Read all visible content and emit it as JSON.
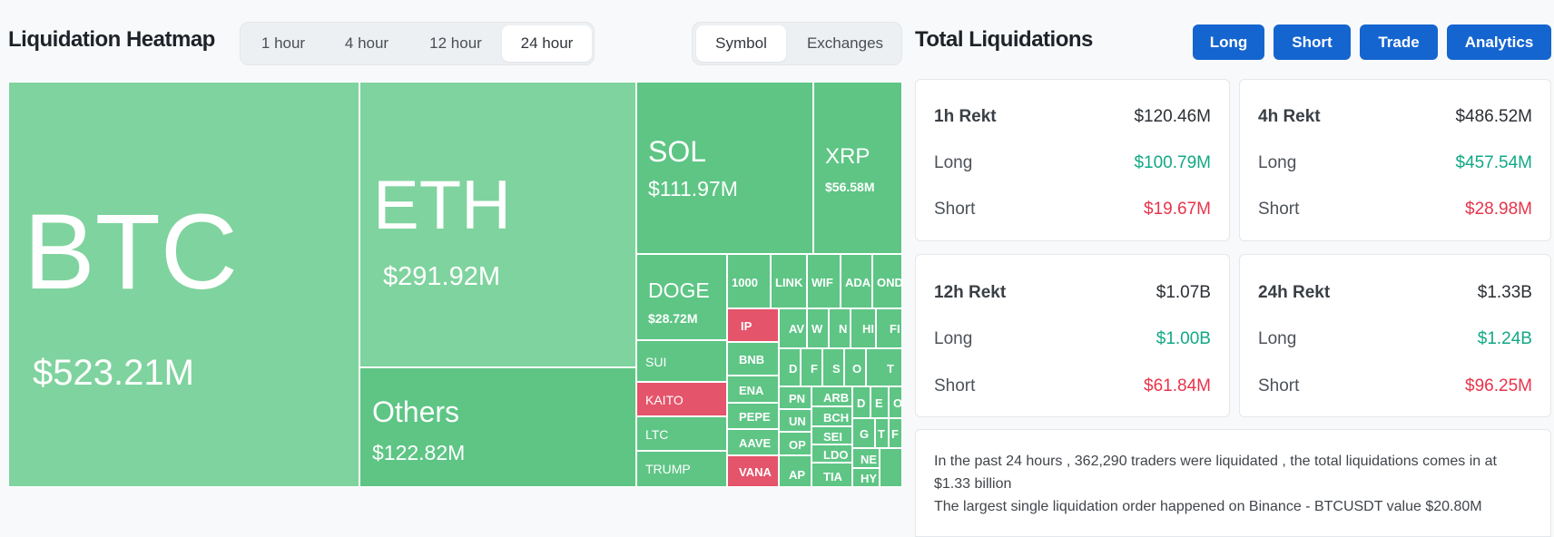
{
  "heatmap": {
    "title": "Liquidation Heatmap",
    "timeframes": [
      "1 hour",
      "4 hour",
      "12 hour",
      "24 hour"
    ],
    "selected_timeframe": "24 hour",
    "group_options": [
      "Symbol",
      "Exchanges"
    ],
    "selected_group": "Symbol",
    "tiles": {
      "btc": {
        "symbol": "BTC",
        "value": "$523.21M"
      },
      "eth": {
        "symbol": "ETH",
        "value": "$291.92M"
      },
      "others": {
        "symbol": "Others",
        "value": "$122.82M"
      },
      "sol": {
        "symbol": "SOL",
        "value": "$111.97M"
      },
      "xrp": {
        "symbol": "XRP",
        "value": "$56.58M"
      },
      "doge": {
        "symbol": "DOGE",
        "value": "$28.72M"
      },
      "sui": "SUI",
      "kaito": "KAITO",
      "ltc": "LTC",
      "trump": "TRUMP",
      "r1": [
        "1000",
        "LINK",
        "WIF",
        "ADA",
        "ONDO"
      ],
      "ip": "IP",
      "bnb": "BNB",
      "ena": "ENA",
      "pepe": "PEPE",
      "aave": "AAVE",
      "vana": "VANA",
      "small": [
        "AV",
        "W",
        "N",
        "HI",
        "FI",
        "D",
        "F",
        "S",
        "O",
        "T",
        "PN",
        "ARB",
        "D",
        "E",
        "O",
        "UN",
        "BCH",
        "OP",
        "SEI",
        "G",
        "T",
        "F",
        "LDO",
        "NE",
        "AP",
        "TIA",
        "HY"
      ]
    }
  },
  "totals": {
    "title": "Total Liquidations",
    "buttons": [
      "Long",
      "Short",
      "Trade",
      "Analytics"
    ],
    "long_label": "Long",
    "short_label": "Short",
    "cards": [
      {
        "period": "1h Rekt",
        "total": "$120.46M",
        "long": "$100.79M",
        "short": "$19.67M"
      },
      {
        "period": "4h Rekt",
        "total": "$486.52M",
        "long": "$457.54M",
        "short": "$28.98M"
      },
      {
        "period": "12h Rekt",
        "total": "$1.07B",
        "long": "$1.00B",
        "short": "$61.84M"
      },
      {
        "period": "24h Rekt",
        "total": "$1.33B",
        "long": "$1.24B",
        "short": "$96.25M"
      }
    ],
    "summary_line1": "In the past 24 hours , 362,290 traders were liquidated , the total liquidations comes in at $1.33 billion",
    "summary_line2": "The largest single liquidation order happened on Binance - BTCUSDT value $20.80M"
  },
  "colors": {
    "long": "#12a886",
    "short": "#e8344b",
    "accent": "#1565d0",
    "tile_light": "#7fd39e",
    "tile_mid": "#5ec585",
    "tile_red": "#e4546a"
  }
}
